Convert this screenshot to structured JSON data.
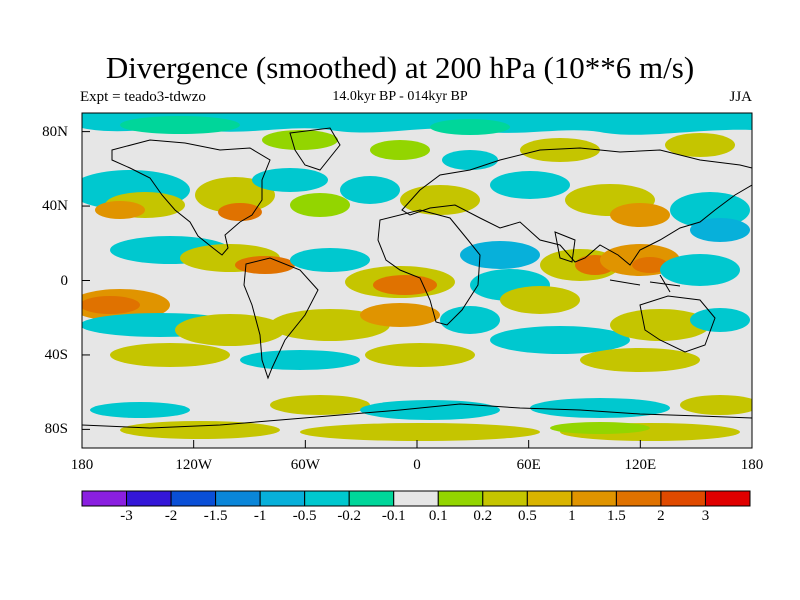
{
  "title": "Divergence (smoothed) at 200 hPa (10**6 m/s)",
  "experiment": "Expt = teado3-tdwzo",
  "subtitle": "14.0kyr BP - 014kyr BP",
  "season": "JJA",
  "map_data": {
    "type": "filled-contour-map",
    "projection": "cylindrical-equidistant",
    "lon_range": [
      -180,
      180
    ],
    "lat_range": [
      -90,
      90
    ],
    "lat_ticks": [
      {
        "lat": 80,
        "label": "80N"
      },
      {
        "lat": 40,
        "label": "40N"
      },
      {
        "lat": 0,
        "label": "0"
      },
      {
        "lat": -40,
        "label": "40S"
      },
      {
        "lat": -80,
        "label": "80S"
      }
    ],
    "lon_ticks": [
      {
        "lon": -180,
        "label": "180"
      },
      {
        "lon": -120,
        "label": "120W"
      },
      {
        "lon": -60,
        "label": "60W"
      },
      {
        "lon": 0,
        "label": "0"
      },
      {
        "lon": 60,
        "label": "60E"
      },
      {
        "lon": 120,
        "label": "120E"
      },
      {
        "lon": 180,
        "label": "180"
      }
    ]
  },
  "colorbar": {
    "colors": [
      "#8a1fe0",
      "#3416d8",
      "#0a4fd6",
      "#0a86d9",
      "#07b0da",
      "#00c8cf",
      "#00d69a",
      "#e6e6e6",
      "#93d500",
      "#c5c500",
      "#d9b400",
      "#e09400",
      "#e07200",
      "#e04a00",
      "#e00000"
    ],
    "labels": [
      "-3",
      "-2",
      "-1.5",
      "-1",
      "-0.5",
      "-0.2",
      "-0.1",
      "0.1",
      "0.2",
      "0.5",
      "1",
      "1.5",
      "2",
      "3"
    ]
  }
}
